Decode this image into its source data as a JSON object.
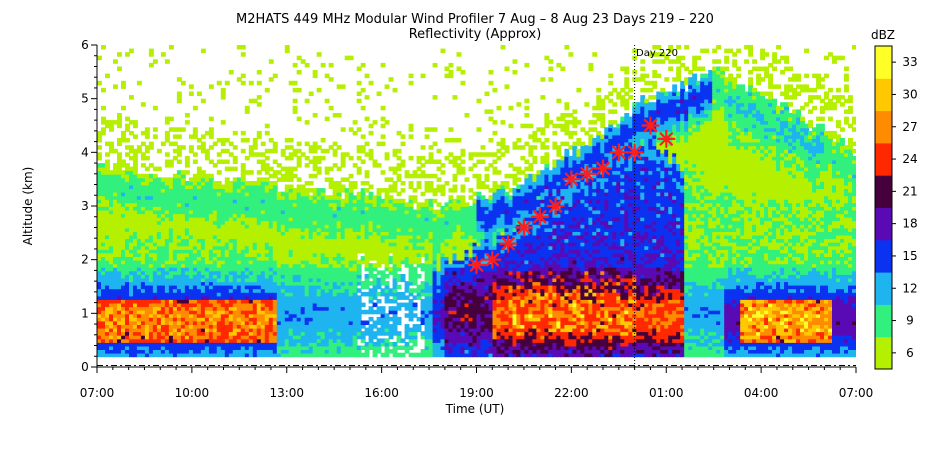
{
  "header": {
    "title": "M2HATS 449 MHz Modular Wind Profiler   7 Aug –  8 Aug 23 Days 219 – 220",
    "subtitle": "Reflectivity (Approx)"
  },
  "day_marker_label": "Day 220",
  "chart_data": {
    "type": "heatmap",
    "title": "M2HATS 449 MHz Modular Wind Profiler   7 Aug –  8 Aug 23 Days 219 – 220",
    "subtitle": "Reflectivity (Approx)",
    "xlabel": "Time (UT)",
    "ylabel": "Altitude (km)",
    "x_ticks": [
      "07:00",
      "10:00",
      "13:00",
      "16:00",
      "19:00",
      "22:00",
      "01:00",
      "04:00",
      "07:00"
    ],
    "y_ticks": [
      "0",
      "1",
      "2",
      "3",
      "4",
      "5",
      "6"
    ],
    "xlim_hours": [
      0,
      24
    ],
    "ylim": [
      0,
      6
    ],
    "day_boundary_hour": 17,
    "colorbar": {
      "label": "dBZ",
      "ticks": [
        "6",
        "9",
        "12",
        "15",
        "18",
        "21",
        "24",
        "27",
        "30",
        "33"
      ],
      "colors": [
        "#b4f000",
        "#32f07d",
        "#1eb4f0",
        "#0a32f0",
        "#5a0ab4",
        "#46003c",
        "#ff2800",
        "#ff8c00",
        "#ffc800",
        "#ffff28"
      ]
    },
    "markers": {
      "symbol": "red asterisk",
      "color": "#ff1e1e",
      "x_hours": [
        12.0,
        12.5,
        13.0,
        13.5,
        14.0,
        14.5,
        15.0,
        15.5,
        16.0,
        16.5,
        17.0,
        17.5,
        18.0
      ],
      "y_km": [
        1.9,
        2.0,
        2.3,
        2.6,
        2.8,
        3.0,
        3.5,
        3.6,
        3.7,
        4.0,
        4.0,
        4.5,
        4.25
      ]
    },
    "echo_layers_approx": {
      "lower_layer_top_km": [
        2.5,
        2.5,
        2.3,
        2.0,
        2.0,
        2.0,
        2.6,
        3.7,
        4.3,
        3.3,
        3.0,
        3.3
      ],
      "upper_layer_top_km": [
        3.8,
        3.6,
        3.5,
        3.3,
        3.2,
        3.0,
        3.3,
        4.1,
        5.0,
        5.5,
        4.8,
        4.0
      ]
    }
  }
}
